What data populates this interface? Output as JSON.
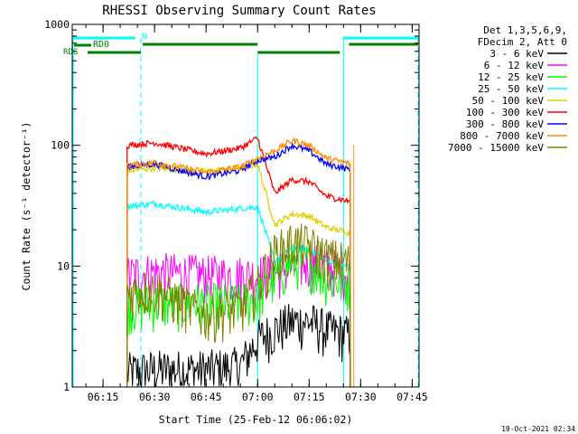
{
  "chart_data": {
    "type": "line",
    "title": "RHESSI Observing Summary Count Rates",
    "xlabel": "Start Time (25-Feb-12 06:06:02)",
    "ylabel": "Count Rate (s⁻¹ detector⁻¹)",
    "yscale": "log",
    "ylim": [
      1,
      1000
    ],
    "xlim": [
      "06:06:02",
      "07:47:00"
    ],
    "x_ticks": [
      "06:15",
      "06:30",
      "06:45",
      "07:00",
      "07:15",
      "07:30",
      "07:45"
    ],
    "y_ticks": [
      "1",
      "10",
      "100",
      "1000"
    ],
    "grid": false,
    "legend_position": "right",
    "legend_header": [
      "Det 1,3,5,6,9,",
      "FDecim 2, Att 0"
    ],
    "timestamp": "19-Oct-2021 02:34",
    "x": [
      "06:15",
      "06:30",
      "06:45",
      "06:55",
      "07:00",
      "07:05",
      "07:10",
      "07:15",
      "07:20",
      "07:25"
    ],
    "series": [
      {
        "name": "3 - 6 keV",
        "color": "#000000",
        "values": [
          null,
          1.4,
          1.4,
          1.5,
          2.5,
          3.0,
          3.5,
          3.5,
          3.0,
          null
        ]
      },
      {
        "name": "6 - 12 keV",
        "color": "#ff00ff",
        "values": [
          null,
          9.0,
          8.5,
          8.5,
          8.5,
          9.0,
          10.0,
          11.0,
          10.0,
          null
        ]
      },
      {
        "name": "12 - 25 keV",
        "color": "#00ff00",
        "values": [
          null,
          5.0,
          5.0,
          5.0,
          5.5,
          8.0,
          11.0,
          11.0,
          8.0,
          null
        ]
      },
      {
        "name": "25 - 50 keV",
        "color": "#00ffff",
        "values": [
          null,
          33,
          28,
          30,
          31,
          11,
          14,
          14,
          11,
          null
        ]
      },
      {
        "name": "50 - 100 keV",
        "color": "#e0d000",
        "values": [
          null,
          65,
          60,
          65,
          70,
          22,
          27,
          26,
          21,
          null
        ]
      },
      {
        "name": "100 - 300 keV",
        "color": "#ff0000",
        "values": [
          null,
          105,
          85,
          95,
          115,
          40,
          52,
          50,
          38,
          null
        ]
      },
      {
        "name": "300 - 800 keV",
        "color": "#0000ff",
        "values": [
          null,
          70,
          55,
          62,
          75,
          80,
          100,
          90,
          70,
          null
        ]
      },
      {
        "name": "800 - 7000 keV",
        "color": "#ff8c00",
        "values": [
          null,
          72,
          60,
          66,
          78,
          90,
          110,
          100,
          78,
          null
        ]
      },
      {
        "name": "7000 - 15000 keV",
        "color": "#808000",
        "values": [
          null,
          6.5,
          4.0,
          4.5,
          7.0,
          13.0,
          16.0,
          15.0,
          12.0,
          null
        ]
      }
    ],
    "annotations": {
      "N_label": "N",
      "RD0_label": "RD0",
      "RDG_label": "RDG"
    }
  }
}
